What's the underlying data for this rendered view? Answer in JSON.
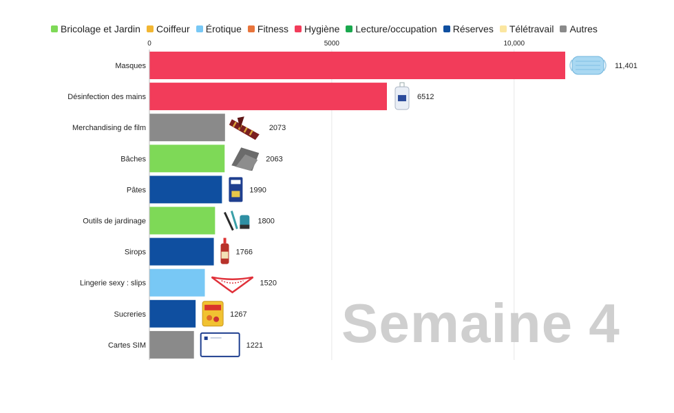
{
  "legend": [
    {
      "label": "Bricolage et Jardin",
      "color": "#7ed957"
    },
    {
      "label": "Coiffeur",
      "color": "#f2b632"
    },
    {
      "label": "Érotique",
      "color": "#78c8f5"
    },
    {
      "label": "Fitness",
      "color": "#e8743b"
    },
    {
      "label": "Hygiène",
      "color": "#f23c5a"
    },
    {
      "label": "Lecture/occupation",
      "color": "#1aa84e"
    },
    {
      "label": "Réserves",
      "color": "#0f4fa0"
    },
    {
      "label": "Télétravail",
      "color": "#fbe6a0"
    },
    {
      "label": "Autres",
      "color": "#8a8a8a"
    }
  ],
  "watermark": "Semaine 4",
  "chart_data": {
    "type": "bar",
    "orientation": "horizontal",
    "categories": [
      "Masques",
      "Désinfection des mains",
      "Merchandising de film",
      "Bâches",
      "Pâtes",
      "Outils de jardinage",
      "Sirops",
      "Lingerie sexy : slips",
      "Sucreries",
      "Cartes SIM"
    ],
    "values": [
      11401,
      6512,
      2073,
      2063,
      1990,
      1800,
      1766,
      1520,
      1267,
      1221
    ],
    "value_labels": [
      "11,401",
      "6512",
      "2073",
      "2063",
      "1990",
      "1800",
      "1766",
      "1520",
      "1267",
      "1221"
    ],
    "groups": [
      "Hygiène",
      "Hygiène",
      "Autres",
      "Bricolage et Jardin",
      "Réserves",
      "Bricolage et Jardin",
      "Réserves",
      "Érotique",
      "Réserves",
      "Autres"
    ],
    "icons": [
      "face-mask-icon",
      "hand-sanitizer-icon",
      "scarf-icon",
      "tarp-icon",
      "pasta-box-icon",
      "garden-tools-icon",
      "syrup-bottle-icon",
      "lingerie-icon",
      "candy-bag-icon",
      "sim-card-icon"
    ],
    "xticks": [
      0,
      5000,
      10000
    ],
    "xtick_labels": [
      "0",
      "5000",
      "10,000"
    ],
    "xlim": [
      0,
      11401
    ],
    "grid": true,
    "legend_position": "top"
  }
}
